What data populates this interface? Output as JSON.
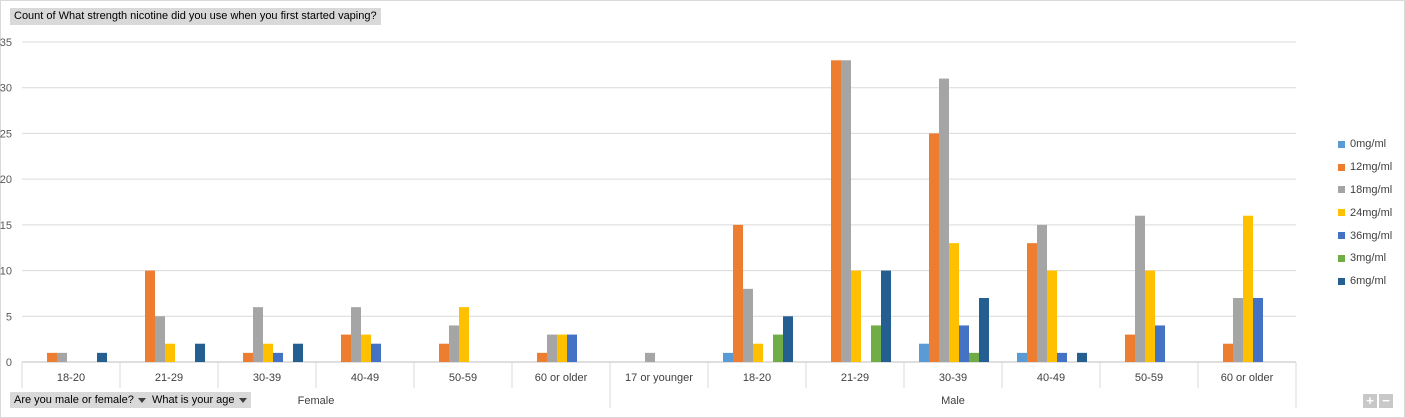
{
  "title": "Count of What strength nicotine did  you use when you first started vaping?",
  "filters": [
    {
      "label": "Are you male or female?"
    },
    {
      "label": "What is your age"
    }
  ],
  "zoom": {
    "in": "+",
    "out": "−"
  },
  "chart_data": {
    "type": "bar",
    "ylim": [
      0,
      35
    ],
    "yticks": [
      0,
      5,
      10,
      15,
      20,
      25,
      30,
      35
    ],
    "grid": true,
    "legend_position": "right",
    "groups": [
      {
        "name": "Female",
        "categories": [
          "18-20",
          "21-29",
          "30-39",
          "40-49",
          "50-59",
          "60 or older"
        ]
      },
      {
        "name": "Male",
        "categories": [
          "17 or younger",
          "18-20",
          "21-29",
          "30-39",
          "40-49",
          "50-59",
          "60 or older"
        ]
      }
    ],
    "categories": [
      "18-20",
      "21-29",
      "30-39",
      "40-49",
      "50-59",
      "60 or older",
      "17 or younger",
      "18-20",
      "21-29",
      "30-39",
      "40-49",
      "50-59",
      "60 or older"
    ],
    "series": [
      {
        "name": "0mg/ml",
        "color": "#5b9bd5",
        "values": [
          0,
          0,
          0,
          0,
          0,
          0,
          0,
          1,
          0,
          2,
          1,
          0,
          0
        ]
      },
      {
        "name": "12mg/ml",
        "color": "#ed7d31",
        "values": [
          1,
          10,
          1,
          3,
          2,
          1,
          0,
          15,
          33,
          25,
          13,
          3,
          2
        ]
      },
      {
        "name": "18mg/ml",
        "color": "#a5a5a5",
        "values": [
          1,
          5,
          6,
          6,
          4,
          3,
          1,
          8,
          33,
          31,
          15,
          16,
          7
        ]
      },
      {
        "name": "24mg/ml",
        "color": "#ffc000",
        "values": [
          0,
          2,
          2,
          3,
          6,
          3,
          0,
          2,
          10,
          13,
          10,
          10,
          16
        ]
      },
      {
        "name": "36mg/ml",
        "color": "#4472c4",
        "values": [
          0,
          0,
          1,
          2,
          0,
          3,
          0,
          0,
          0,
          4,
          1,
          4,
          7
        ]
      },
      {
        "name": "3mg/ml",
        "color": "#70ad47",
        "values": [
          0,
          0,
          0,
          0,
          0,
          0,
          0,
          3,
          4,
          1,
          0,
          0,
          0
        ]
      },
      {
        "name": "6mg/ml",
        "color": "#255e91",
        "values": [
          1,
          2,
          2,
          0,
          0,
          0,
          0,
          5,
          10,
          7,
          1,
          0,
          0
        ]
      }
    ]
  }
}
